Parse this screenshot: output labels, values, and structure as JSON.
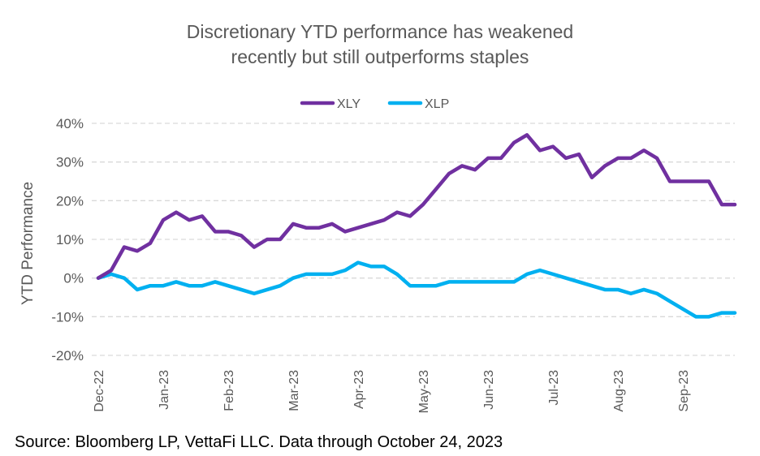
{
  "chart_data": {
    "type": "line",
    "title": "Discretionary YTD performance has weakened recently but still outperforms staples",
    "y_label": "YTD Performance",
    "source": "Source: Bloomberg LP, VettaFi LLC. Data through October 24, 2023",
    "categories": [
      "Dec-22",
      null,
      null,
      null,
      null,
      "Jan-23",
      null,
      null,
      null,
      null,
      "Feb-23",
      null,
      null,
      null,
      null,
      "Mar-23",
      null,
      null,
      null,
      null,
      "Apr-23",
      null,
      null,
      null,
      null,
      "May-23",
      null,
      null,
      null,
      null,
      "Jun-23",
      null,
      null,
      null,
      null,
      "Jul-23",
      null,
      null,
      null,
      null,
      "Aug-23",
      null,
      null,
      null,
      null,
      "Sep-23",
      null,
      null,
      null,
      null
    ],
    "series": [
      {
        "name": "XLY",
        "color": "#7030a0",
        "values": [
          0,
          2,
          8,
          7,
          9,
          15,
          17,
          15,
          16,
          12,
          12,
          11,
          8,
          10,
          10,
          14,
          13,
          13,
          14,
          12,
          13,
          14,
          15,
          17,
          16,
          19,
          23,
          27,
          29,
          28,
          31,
          31,
          35,
          37,
          33,
          34,
          31,
          32,
          26,
          29,
          31,
          31,
          33,
          31,
          25,
          25,
          25,
          25,
          19,
          19
        ]
      },
      {
        "name": "XLP",
        "color": "#00b0f0",
        "values": [
          0,
          1,
          0,
          -3,
          -2,
          -2,
          -1,
          -2,
          -2,
          -1,
          -2,
          -3,
          -4,
          -3,
          -2,
          0,
          1,
          1,
          1,
          2,
          4,
          3,
          3,
          1,
          -2,
          -2,
          -2,
          -1,
          -1,
          -1,
          -1,
          -1,
          -1,
          1,
          2,
          1,
          0,
          -1,
          -2,
          -3,
          -3,
          -4,
          -3,
          -4,
          -6,
          -8,
          -10,
          -10,
          -9,
          -9
        ]
      }
    ],
    "ylim": [
      -20,
      40
    ],
    "yticks": [
      {
        "value": -20,
        "label": "-20%"
      },
      {
        "value": -10,
        "label": "-10%"
      },
      {
        "value": 0,
        "label": "0%"
      },
      {
        "value": 10,
        "label": "10%"
      },
      {
        "value": 20,
        "label": "20%"
      },
      {
        "value": 30,
        "label": "30%"
      },
      {
        "value": 40,
        "label": "40%"
      }
    ],
    "grid": true,
    "legend": "top"
  }
}
